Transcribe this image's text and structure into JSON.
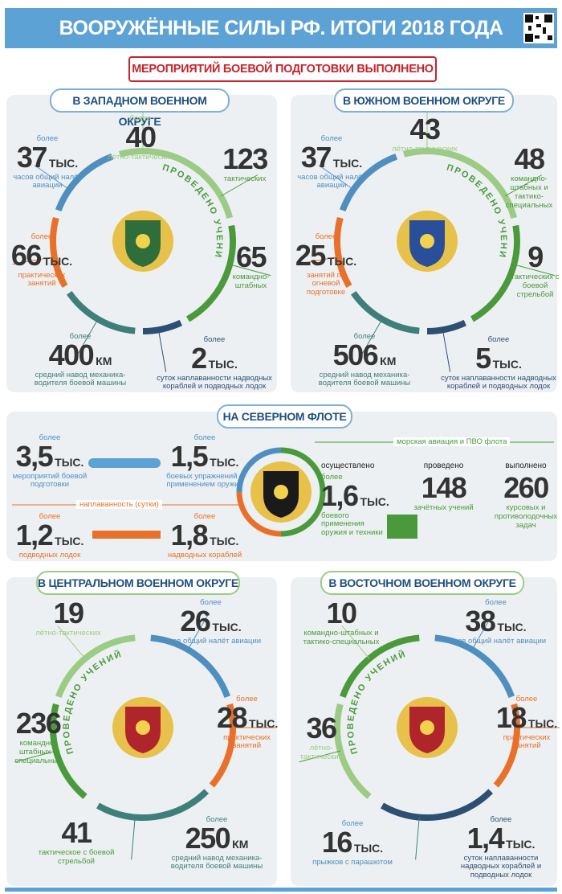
{
  "header": {
    "title": "ВООРУЖЁННЫЕ СИЛЫ РФ. ИТОГИ 2018 ГОДА",
    "subtitle": "МЕРОПРИЯТИЙ БОЕВОЙ ПОДГОТОВКИ ВЫПОЛНЕНО"
  },
  "panels": {
    "west": {
      "title": "В ЗАПАДНОМ ВОЕННОМ ОКРУГЕ",
      "ring": "ПРОВЕДЕНО УЧЕНИЙ",
      "items": [
        {
          "prefix": "более",
          "value": "37",
          "unit": "ТЫС.",
          "label": "часов общий налёт авиации"
        },
        {
          "prefix": "более",
          "value": "40",
          "label": "лётно-тактических"
        },
        {
          "value": "123",
          "label": "тактических"
        },
        {
          "value": "65",
          "label": "командно-штабных"
        },
        {
          "prefix": "более",
          "value": "66",
          "unit": "ТЫС.",
          "label": "практических занятий"
        },
        {
          "prefix": "более",
          "value": "400",
          "unit": "КМ",
          "label": "средний навод механика-водителя боевой машины"
        },
        {
          "prefix": "более",
          "value": "2",
          "unit": "ТЫС.",
          "label": "суток наплаванности надводных кораблей и подводных лодок"
        }
      ]
    },
    "south": {
      "title": "В ЮЖНОМ ВОЕННОМ ОКРУГЕ",
      "ring": "ПРОВЕДЕНО УЧЕНИЙ",
      "items": [
        {
          "prefix": "более",
          "value": "37",
          "unit": "ТЫС.",
          "label": "часов общий налёт авиации"
        },
        {
          "value": "43",
          "label": "лётно-тактических"
        },
        {
          "value": "48",
          "label": "командно-штабных и тактико-специальных"
        },
        {
          "value": "9",
          "label": "тактических с боевой стрельбой"
        },
        {
          "prefix": "более",
          "value": "25",
          "unit": "ТЫС.",
          "label": "занятий по огневой подготовке"
        },
        {
          "prefix": "более",
          "value": "506",
          "unit": "КМ",
          "label": "средний навод механика-водителя боевой машины"
        },
        {
          "prefix": "более",
          "value": "5",
          "unit": "ТЫС.",
          "label": "суток наплаванности надводных кораблей и подводных лодок"
        }
      ]
    },
    "north": {
      "title": "НА СЕВЕРНОМ ФЛОТЕ",
      "sections": [
        "наплаванность (сутки)",
        "морская авиация и ПВО флота"
      ],
      "items": [
        {
          "prefix": "более",
          "value": "3,5",
          "unit": "ТЫС.",
          "label": "мероприятий боевой подготовки"
        },
        {
          "prefix": "более",
          "value": "1,5",
          "unit": "ТЫС.",
          "label": "боевых упражнений с применением оружия"
        },
        {
          "prefix": "более",
          "value": "1,2",
          "unit": "ТЫС.",
          "label": "подводных лодок"
        },
        {
          "prefix": "более",
          "value": "1,8",
          "unit": "ТЫС.",
          "label": "надводных кораблей"
        },
        {
          "heading": "осуществлено",
          "prefix": "более",
          "value": "1,6",
          "unit": "ТЫС.",
          "label": "боевого применения оружия и техники"
        },
        {
          "heading": "проведено",
          "value": "148",
          "label": "зачётных учений"
        },
        {
          "heading": "выполнено",
          "value": "260",
          "label": "курсовых и противолодочных задач"
        }
      ]
    },
    "central": {
      "title": "В ЦЕНТРАЛЬНОМ ВОЕННОМ ОКРУГЕ",
      "ring": "ПРОВЕДЕНО УЧЕНИЙ",
      "items": [
        {
          "value": "19",
          "label": "лётно-тактических"
        },
        {
          "prefix": "более",
          "value": "26",
          "unit": "ТЫС.",
          "label": "часов общий налёт авиации"
        },
        {
          "prefix": "более",
          "value": "28",
          "unit": "ТЫС.",
          "label": "практических занятий"
        },
        {
          "value": "236",
          "label": "командно-штабных и специальных"
        },
        {
          "value": "41",
          "label": "тактическое с боевой стрельбой"
        },
        {
          "prefix": "более",
          "value": "250",
          "unit": "КМ",
          "label": "средний навод механика-водителя боевой машины"
        }
      ]
    },
    "east": {
      "title": "В ВОСТОЧНОМ ВОЕННОМ ОКРУГЕ",
      "ring": "ПРОВЕДЕНО УЧЕНИЙ",
      "items": [
        {
          "value": "10",
          "label": "командно-штабных и тактико-специальных"
        },
        {
          "prefix": "более",
          "value": "38",
          "unit": "ТЫС.",
          "label": "часов общий налёт авиации"
        },
        {
          "prefix": "более",
          "value": "18",
          "unit": "ТЫС.",
          "label": "практических занятий"
        },
        {
          "value": "36",
          "label": "лётно-тактических"
        },
        {
          "prefix": "более",
          "value": "16",
          "unit": "ТЫС.",
          "label": "прыжков с парашютом"
        },
        {
          "prefix": "более",
          "value": "1,4",
          "unit": "ТЫС.",
          "label": "суток наплаванности надводных кораблей и подводных лодок"
        }
      ]
    }
  }
}
